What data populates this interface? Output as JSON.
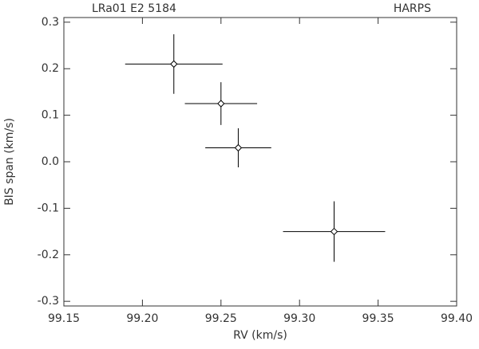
{
  "chart_data": {
    "type": "scatter",
    "title": "LRa01 E2 5184",
    "subtitle": "HARPS",
    "x_label": "RV (km/s)",
    "y_label": "BIS span (km/s)",
    "series": [
      {
        "color": "#000000",
        "marker": "diamond",
        "x": [
          99.22,
          99.25,
          99.261,
          99.322
        ],
        "y": [
          0.21,
          0.125,
          0.03,
          -0.15
        ],
        "xerr": [
          0.031,
          0.023,
          0.021,
          0.0325
        ],
        "yerr": [
          0.064,
          0.046,
          0.042,
          0.065
        ]
      }
    ],
    "xlim": [
      99.15,
      99.4
    ],
    "xticks": [
      99.15,
      {
        "value": 99.2,
        "label": "99.20"
      },
      99.25,
      {
        "value": 99.3,
        "label": "99.30"
      },
      99.35,
      {
        "value": 99.4,
        "label": "99.40"
      }
    ],
    "ylim": [
      -0.31,
      0.31
    ],
    "yticks": [
      -0.3,
      -0.2,
      -0.1,
      {
        "value": 0,
        "label": "0.0"
      },
      0.1,
      0.2,
      0.3
    ],
    "grid": false
  }
}
